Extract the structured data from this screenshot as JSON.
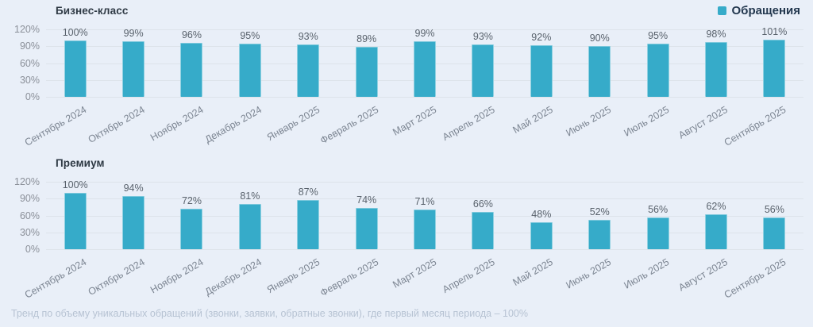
{
  "legend": {
    "label": "Обращения",
    "color": "#36abc9"
  },
  "footnote": "Тренд по объему уникальных обращений (звонки, заявки, обратные звонки), где первый месяц периода – 100%",
  "chart_data": [
    {
      "type": "bar",
      "title": "Бизнес-класс",
      "categories": [
        "Сентябрь 2024",
        "Октябрь 2024",
        "Ноябрь 2024",
        "Декабрь 2024",
        "Январь 2025",
        "Февраль 2025",
        "Март 2025",
        "Апрель 2025",
        "Май 2025",
        "Июнь 2025",
        "Июль 2025",
        "Август 2025",
        "Сентябрь 2025"
      ],
      "series": [
        {
          "name": "Обращения",
          "values": [
            100,
            99,
            96,
            95,
            93,
            89,
            99,
            93,
            92,
            90,
            95,
            98,
            101
          ]
        }
      ],
      "value_label_suffix": "%",
      "yticks": [
        "0%",
        "30%",
        "60%",
        "90%",
        "120%"
      ],
      "ylim": [
        0,
        120
      ],
      "grid": true,
      "legend_position": "top-right",
      "bar_color": "#36abc9"
    },
    {
      "type": "bar",
      "title": "Премиум",
      "categories": [
        "Сентябрь 2024",
        "Октябрь 2024",
        "Ноябрь 2024",
        "Декабрь 2024",
        "Январь 2025",
        "Февраль 2025",
        "Март 2025",
        "Апрель 2025",
        "Май 2025",
        "Июнь 2025",
        "Июль 2025",
        "Август 2025",
        "Сентябрь 2025"
      ],
      "series": [
        {
          "name": "Обращения",
          "values": [
            100,
            94,
            72,
            81,
            87,
            74,
            71,
            66,
            48,
            52,
            56,
            62,
            56
          ]
        }
      ],
      "value_label_suffix": "%",
      "yticks": [
        "0%",
        "30%",
        "60%",
        "90%",
        "120%"
      ],
      "ylim": [
        0,
        120
      ],
      "grid": true,
      "legend_position": "top-right",
      "bar_color": "#36abc9"
    }
  ]
}
